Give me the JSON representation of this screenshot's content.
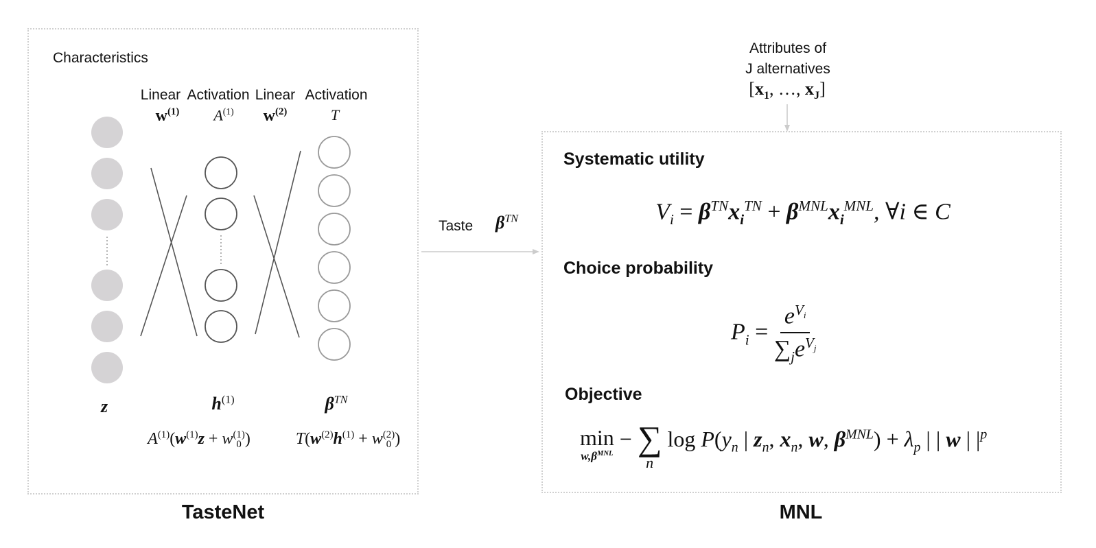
{
  "tastenet": {
    "title": "TasteNet",
    "characteristics_label": "Characteristics",
    "layers": [
      {
        "type": "Linear",
        "symbol": "w",
        "sup": "(1)"
      },
      {
        "type": "Activation",
        "symbol": "A",
        "sup": "(1)"
      },
      {
        "type": "Linear",
        "symbol": "w",
        "sup": "(2)"
      },
      {
        "type": "Activation",
        "symbol": "T",
        "sup": ""
      }
    ],
    "input_label": "z",
    "hidden_label": {
      "symbol": "h",
      "sup": "(1)"
    },
    "output_label": {
      "symbol": "β",
      "sup": "TN"
    },
    "hidden_formula": {
      "f": "A",
      "f_sup": "(1)",
      "open": "(",
      "w": "w",
      "w_sup": "(1)",
      "x": "z",
      "plus": " + ",
      "b": "w",
      "b_sub": "0",
      "b_sup": "(1)",
      "close": ")"
    },
    "output_formula": {
      "f": "T",
      "open": "(",
      "w": "w",
      "w_sup": "(2)",
      "x": "h",
      "x_sup": "(1)",
      "plus": " + ",
      "b": "w",
      "b_sub": "0",
      "b_sup": "(2)",
      "close": ")"
    },
    "colors": {
      "input_fill": "#d5d3d5",
      "hidden_stroke": "#555555",
      "output_stroke": "#999999"
    }
  },
  "connector": {
    "label": "Taste",
    "symbol": "β",
    "sup": "TN"
  },
  "mnl": {
    "title": "MNL",
    "attributes_line1": "Attributes of",
    "attributes_line2": "J alternatives",
    "attributes_vector": {
      "open": "[",
      "x1": "x",
      "x1_sub": "1",
      "sep": ", …, ",
      "xJ": "x",
      "xJ_sub": "J",
      "close": "]"
    },
    "sections": [
      {
        "heading": "Systematic utility"
      },
      {
        "heading": "Choice probability"
      },
      {
        "heading": "Objective"
      }
    ],
    "utility_eq": {
      "V": "V",
      "V_sub": "i",
      "eq": " = ",
      "b1": "β",
      "b1_sup": "TN",
      "x1": "x",
      "x1_sub": "i",
      "x1_sup": "TN",
      "plus": " + ",
      "b2": "β",
      "b2_sup": "MNL",
      "x2": "x",
      "x2_sub": "i",
      "x2_sup": "MNL",
      "tail": ", ∀i ∈ C"
    },
    "prob_eq": {
      "P": "P",
      "P_sub": "i",
      "eq": " = ",
      "num": "e",
      "num_sup": "V",
      "num_sup_sub": "i",
      "den_sum": "∑",
      "den_sum_sub": "j",
      "den": "e",
      "den_sup": "V",
      "den_sup_sub": "j"
    },
    "objective_eq": {
      "min": "min",
      "min_sub": "w,β",
      "min_sub_sup": "MNL",
      "minus": " − ",
      "sum": "∑",
      "sum_sub": "n",
      "log": " log ",
      "P": "P",
      "open": "(",
      "y": "y",
      "y_sub": "n",
      "bar": " | ",
      "z": "z",
      "z_sub": "n",
      "x": "x",
      "x_sub": "n",
      "w": "w",
      "beta": "β",
      "beta_sup": "MNL",
      "close": ")",
      "plus": " + ",
      "lambda": "λ",
      "lambda_sub": "p",
      "norm_open": " | | ",
      "w2": "w",
      "norm_close": " | |",
      "p": "p",
      "comma": ", "
    }
  }
}
